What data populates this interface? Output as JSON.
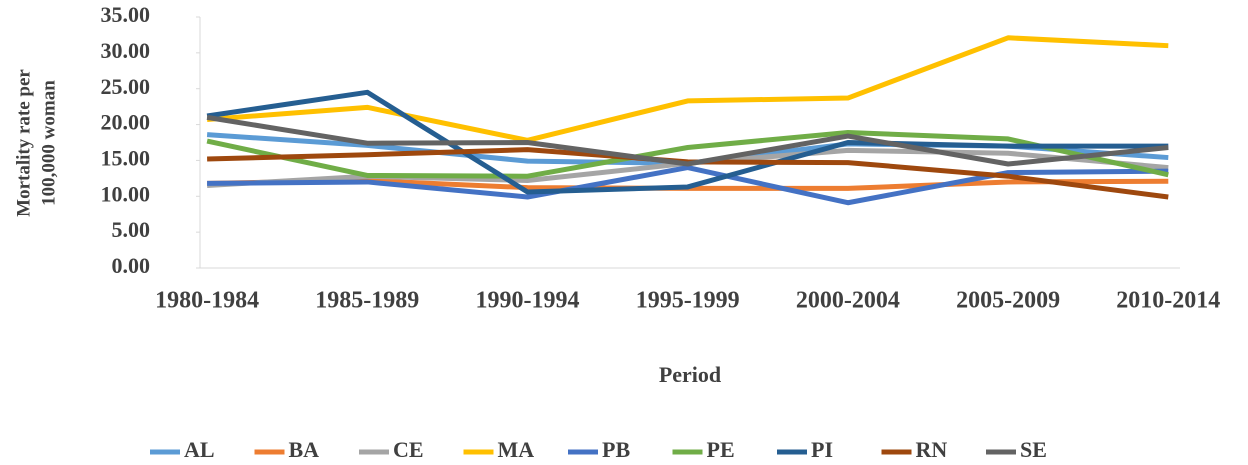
{
  "chart_data": {
    "type": "line",
    "xlabel": "Period",
    "ylabel": [
      "Mortality rate per",
      "100,000 woman"
    ],
    "categories": [
      "1980-1984",
      "1985-1989",
      "1990-1994",
      "1995-1999",
      "2000-2004",
      "2005-2009",
      "2010-2014"
    ],
    "ylim": [
      0,
      35
    ],
    "yticks": [
      {
        "value": 0,
        "label": "0.00"
      },
      {
        "value": 5,
        "label": "5.00"
      },
      {
        "value": 10,
        "label": "10.00"
      },
      {
        "value": 15,
        "label": "15.00"
      },
      {
        "value": 20,
        "label": "20.00"
      },
      {
        "value": 25,
        "label": "25.00"
      },
      {
        "value": 30,
        "label": "30.00"
      },
      {
        "value": 35,
        "label": "35.00"
      }
    ],
    "legend": "bottom",
    "series": [
      {
        "name": "AL",
        "color": "#5b9bd5",
        "values": [
          18.6,
          17.1,
          14.9,
          14.6,
          17.3,
          17.0,
          15.4
        ]
      },
      {
        "name": "BA",
        "color": "#ed7d31",
        "values": [
          11.8,
          12.2,
          11.2,
          11.1,
          11.1,
          12.0,
          12.1
        ]
      },
      {
        "name": "CE",
        "color": "#a5a5a5",
        "values": [
          11.5,
          12.8,
          12.2,
          14.6,
          16.4,
          16.0,
          14.0
        ]
      },
      {
        "name": "MA",
        "color": "#ffc000",
        "values": [
          20.7,
          22.4,
          17.8,
          23.3,
          23.7,
          32.1,
          31.0
        ]
      },
      {
        "name": "PB",
        "color": "#4472c4",
        "values": [
          11.8,
          12.0,
          9.9,
          14.0,
          9.1,
          13.3,
          13.5
        ]
      },
      {
        "name": "PE",
        "color": "#70ad47",
        "values": [
          17.7,
          12.9,
          12.8,
          16.8,
          18.9,
          18.0,
          13.0
        ]
      },
      {
        "name": "PI",
        "color": "#255e91",
        "values": [
          21.2,
          24.5,
          10.6,
          11.3,
          17.5,
          17.0,
          17.0
        ]
      },
      {
        "name": "RN",
        "color": "#9e480e",
        "values": [
          15.2,
          15.8,
          16.5,
          14.8,
          14.7,
          12.8,
          9.9
        ]
      },
      {
        "name": "SE",
        "color": "#636363",
        "values": [
          21.0,
          17.4,
          17.5,
          14.5,
          18.4,
          14.5,
          16.8
        ]
      }
    ]
  }
}
